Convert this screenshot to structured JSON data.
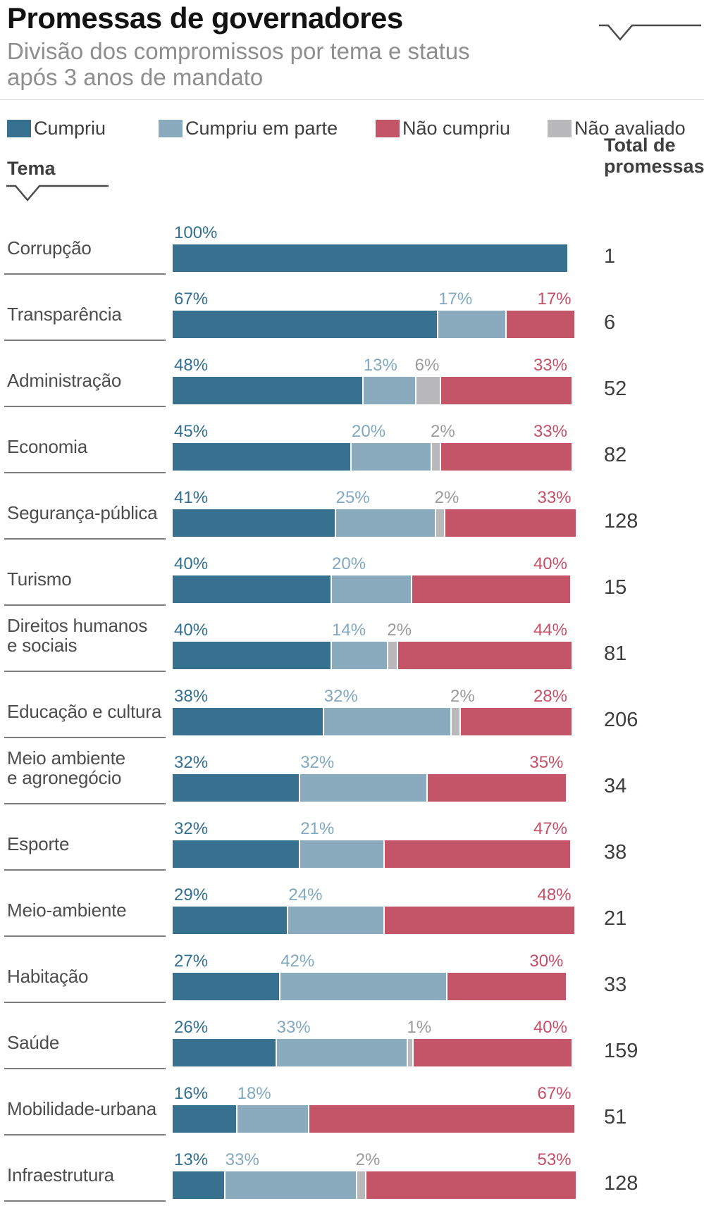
{
  "header": {
    "title": "Promessas de governadores",
    "subtitle": "Divisão dos compromissos por tema e status\napós 3 anos de mandato"
  },
  "legend": [
    {
      "label": "Cumpriu",
      "status": "cumpriu"
    },
    {
      "label": "Cumpriu em parte",
      "status": "parte"
    },
    {
      "label": "Não cumpriu",
      "status": "nao_cumpriu"
    },
    {
      "label": "Não avaliado",
      "status": "nao_avaliado"
    }
  ],
  "columns": {
    "tema": "Tema",
    "total": "Total de\npromessas"
  },
  "colors": {
    "cumpriu": "#38708f",
    "parte": "#8aabbd",
    "nao_avaliado": "#b9b9bb",
    "nao_cumpriu": "#c45568",
    "label_cumpriu": "#33708f",
    "label_parte": "#82a9bf",
    "label_nao_avaliado": "#9b9b9b",
    "label_nao_cumpriu": "#c64f68"
  },
  "chart_data": {
    "type": "bar",
    "orientation": "horizontal-stacked",
    "unit": "percent",
    "title": "Promessas de governadores",
    "subtitle": "Divisão dos compromissos por tema e status após 3 anos de mandato",
    "xlim": [
      0,
      100
    ],
    "series_order": [
      "cumpriu",
      "parte",
      "nao_avaliado",
      "nao_cumpriu"
    ],
    "series_labels": {
      "cumpriu": "Cumpriu",
      "parte": "Cumpriu em parte",
      "nao_avaliado": "Não avaliado",
      "nao_cumpriu": "Não cumpriu"
    },
    "rows": [
      {
        "theme": "Corrupção",
        "total": "1",
        "segments": [
          {
            "status": "cumpriu",
            "pct": 100
          }
        ]
      },
      {
        "theme": "Transparência",
        "total": "6",
        "segments": [
          {
            "status": "cumpriu",
            "pct": 67
          },
          {
            "status": "parte",
            "pct": 17
          },
          {
            "status": "nao_cumpriu",
            "pct": 17
          }
        ]
      },
      {
        "theme": "Administração",
        "total": "52",
        "segments": [
          {
            "status": "cumpriu",
            "pct": 48
          },
          {
            "status": "parte",
            "pct": 13
          },
          {
            "status": "nao_avaliado",
            "pct": 6
          },
          {
            "status": "nao_cumpriu",
            "pct": 33
          }
        ]
      },
      {
        "theme": "Economia",
        "total": "82",
        "segments": [
          {
            "status": "cumpriu",
            "pct": 45
          },
          {
            "status": "parte",
            "pct": 20
          },
          {
            "status": "nao_avaliado",
            "pct": 2
          },
          {
            "status": "nao_cumpriu",
            "pct": 33
          }
        ]
      },
      {
        "theme": "Segurança-pública",
        "total": "128",
        "segments": [
          {
            "status": "cumpriu",
            "pct": 41
          },
          {
            "status": "parte",
            "pct": 25
          },
          {
            "status": "nao_avaliado",
            "pct": 2
          },
          {
            "status": "nao_cumpriu",
            "pct": 33
          }
        ]
      },
      {
        "theme": "Turismo",
        "total": "15",
        "segments": [
          {
            "status": "cumpriu",
            "pct": 40
          },
          {
            "status": "parte",
            "pct": 20
          },
          {
            "status": "nao_cumpriu",
            "pct": 40
          }
        ]
      },
      {
        "theme": "Direitos humanos\ne sociais",
        "total": "81",
        "segments": [
          {
            "status": "cumpriu",
            "pct": 40
          },
          {
            "status": "parte",
            "pct": 14
          },
          {
            "status": "nao_avaliado",
            "pct": 2
          },
          {
            "status": "nao_cumpriu",
            "pct": 44
          }
        ]
      },
      {
        "theme": "Educação e cultura",
        "total": "206",
        "segments": [
          {
            "status": "cumpriu",
            "pct": 38
          },
          {
            "status": "parte",
            "pct": 32
          },
          {
            "status": "nao_avaliado",
            "pct": 2
          },
          {
            "status": "nao_cumpriu",
            "pct": 28
          }
        ]
      },
      {
        "theme": "Meio ambiente\ne agronegócio",
        "total": "34",
        "segments": [
          {
            "status": "cumpriu",
            "pct": 32
          },
          {
            "status": "parte",
            "pct": 32
          },
          {
            "status": "nao_cumpriu",
            "pct": 35
          }
        ]
      },
      {
        "theme": "Esporte",
        "total": "38",
        "segments": [
          {
            "status": "cumpriu",
            "pct": 32
          },
          {
            "status": "parte",
            "pct": 21
          },
          {
            "status": "nao_cumpriu",
            "pct": 47
          }
        ]
      },
      {
        "theme": "Meio-ambiente",
        "total": "21",
        "segments": [
          {
            "status": "cumpriu",
            "pct": 29
          },
          {
            "status": "parte",
            "pct": 24
          },
          {
            "status": "nao_cumpriu",
            "pct": 48
          }
        ]
      },
      {
        "theme": "Habitação",
        "total": "33",
        "segments": [
          {
            "status": "cumpriu",
            "pct": 27
          },
          {
            "status": "parte",
            "pct": 42
          },
          {
            "status": "nao_cumpriu",
            "pct": 30
          }
        ]
      },
      {
        "theme": "Saúde",
        "total": "159",
        "segments": [
          {
            "status": "cumpriu",
            "pct": 26
          },
          {
            "status": "parte",
            "pct": 33
          },
          {
            "status": "nao_avaliado",
            "pct": 1
          },
          {
            "status": "nao_cumpriu",
            "pct": 40
          }
        ]
      },
      {
        "theme": "Mobilidade-urbana",
        "total": "51",
        "segments": [
          {
            "status": "cumpriu",
            "pct": 16
          },
          {
            "status": "parte",
            "pct": 18
          },
          {
            "status": "nao_cumpriu",
            "pct": 67
          }
        ]
      },
      {
        "theme": "Infraestrutura",
        "total": "128",
        "segments": [
          {
            "status": "cumpriu",
            "pct": 13
          },
          {
            "status": "parte",
            "pct": 33
          },
          {
            "status": "nao_avaliado",
            "pct": 2
          },
          {
            "status": "nao_cumpriu",
            "pct": 53
          }
        ]
      }
    ]
  }
}
